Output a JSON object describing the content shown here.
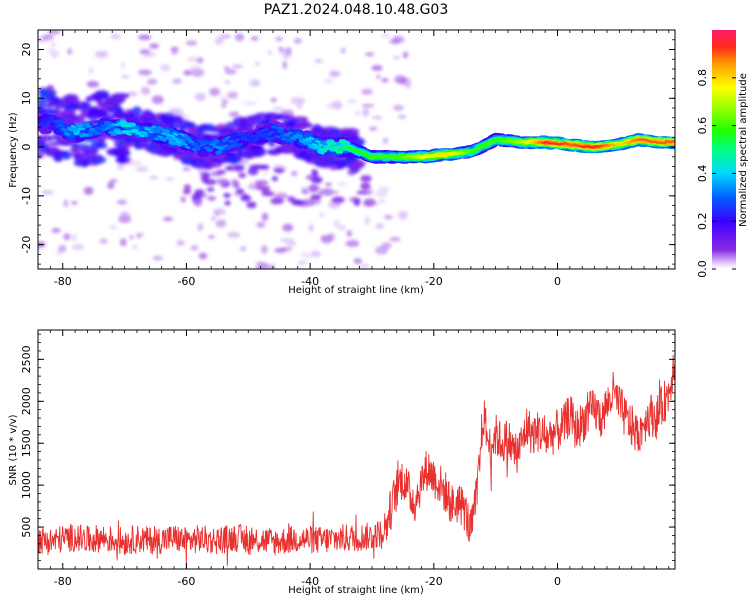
{
  "figure_title": "PAZ1.2024.048.10.48.G03",
  "chart_data": [
    {
      "type": "heatmap",
      "xlabel": "Height of straight line (km)",
      "ylabel": "Frequency (Hz)",
      "xlim": [
        -84,
        19
      ],
      "ylim": [
        -25,
        24
      ],
      "x_ticks": [
        -80,
        -60,
        -40,
        -20,
        0
      ],
      "x_tick_labels": [
        "-80",
        "-60",
        "-40",
        "-20",
        "0"
      ],
      "y_ticks": [
        20,
        10,
        0,
        -10,
        -20
      ],
      "y_tick_labels": [
        "20",
        "10",
        "0",
        "-10",
        "-20"
      ],
      "colorbar": {
        "label": "Normalized spectral amplitude",
        "range": [
          0,
          1
        ],
        "ticks": [
          0.0,
          0.2,
          0.4,
          0.6,
          0.8
        ],
        "tick_labels": [
          "0.0",
          "0.2",
          "0.4",
          "0.6",
          "0.8"
        ],
        "colormap": "gist_rainbow_r"
      },
      "ridge": {
        "description_points": [
          {
            "x": -82,
            "y": 5,
            "amp": 0.25
          },
          {
            "x": -78,
            "y": 3,
            "amp": 0.4
          },
          {
            "x": -74,
            "y": 4,
            "amp": 0.3
          },
          {
            "x": -70,
            "y": 4,
            "amp": 0.45
          },
          {
            "x": -65,
            "y": 3,
            "amp": 0.35
          },
          {
            "x": -62,
            "y": 2,
            "amp": 0.4
          },
          {
            "x": -58,
            "y": 0,
            "amp": 0.3
          },
          {
            "x": -55,
            "y": 0,
            "amp": 0.35
          },
          {
            "x": -50,
            "y": 2,
            "amp": 0.25
          },
          {
            "x": -46,
            "y": 3,
            "amp": 0.3
          },
          {
            "x": -42,
            "y": 2,
            "amp": 0.35
          },
          {
            "x": -38,
            "y": 0,
            "amp": 0.45
          },
          {
            "x": -34,
            "y": 0,
            "amp": 0.55
          },
          {
            "x": -30,
            "y": -2,
            "amp": 0.6
          },
          {
            "x": -26,
            "y": -2,
            "amp": 0.6
          },
          {
            "x": -22,
            "y": -2,
            "amp": 0.75
          },
          {
            "x": -18,
            "y": -1.5,
            "amp": 0.8
          },
          {
            "x": -14,
            "y": -1,
            "amp": 0.6
          },
          {
            "x": -10,
            "y": 1.5,
            "amp": 0.6
          },
          {
            "x": -6,
            "y": 1,
            "amp": 0.7
          },
          {
            "x": -2,
            "y": 1,
            "amp": 0.95
          },
          {
            "x": 2,
            "y": 0.5,
            "amp": 0.9
          },
          {
            "x": 6,
            "y": 0,
            "amp": 0.95
          },
          {
            "x": 10,
            "y": 0.5,
            "amp": 0.8
          },
          {
            "x": 13,
            "y": 1.5,
            "amp": 0.9
          },
          {
            "x": 17,
            "y": 1,
            "amp": 0.9
          }
        ]
      }
    },
    {
      "type": "line",
      "xlabel": "Height of straight line (km)",
      "ylabel": "SNR (10 * v/v)",
      "xlim": [
        -84,
        19
      ],
      "ylim": [
        0,
        2850
      ],
      "x_ticks": [
        -80,
        -60,
        -40,
        -20,
        0
      ],
      "x_tick_labels": [
        "-80",
        "-60",
        "-40",
        "-20",
        "0"
      ],
      "y_ticks": [
        500,
        1000,
        1500,
        2000,
        2500
      ],
      "y_tick_labels": [
        "500",
        "1000",
        "1500",
        "2000",
        "2500"
      ],
      "line_color": "#e8312f",
      "series": [
        {
          "x": [
            -84,
            -82,
            -80,
            -78,
            -76,
            -74,
            -72,
            -70,
            -68,
            -66,
            -64,
            -62,
            -60,
            -58,
            -56,
            -54,
            -52,
            -50,
            -48,
            -46,
            -44,
            -42,
            -40,
            -38,
            -36,
            -34,
            -32,
            -30,
            -28,
            -27,
            -26,
            -25,
            -24,
            -23,
            -22,
            -21,
            -20,
            -19,
            -18,
            -17,
            -16,
            -15,
            -14,
            -13,
            -12,
            -11,
            -10,
            -9,
            -8,
            -7,
            -6,
            -5,
            -4,
            -3,
            -2,
            -1,
            0,
            1,
            2,
            3,
            4,
            5,
            6,
            7,
            8,
            9,
            10,
            11,
            12,
            13,
            14,
            15,
            16,
            17,
            18,
            19
          ],
          "values": [
            350,
            330,
            360,
            380,
            340,
            370,
            350,
            330,
            360,
            340,
            350,
            370,
            330,
            360,
            340,
            350,
            380,
            330,
            350,
            320,
            340,
            360,
            350,
            340,
            360,
            370,
            380,
            390,
            450,
            700,
            950,
            1100,
            900,
            800,
            1050,
            1200,
            1100,
            1000,
            900,
            750,
            800,
            700,
            450,
            900,
            1850,
            1450,
            1600,
            1500,
            1550,
            1400,
            1450,
            1700,
            1600,
            1650,
            1550,
            1600,
            1650,
            1700,
            1850,
            1650,
            1750,
            1850,
            1900,
            1800,
            1950,
            2100,
            1950,
            1800,
            1700,
            1600,
            1750,
            1850,
            1800,
            1950,
            2100,
            2550
          ]
        }
      ]
    }
  ]
}
